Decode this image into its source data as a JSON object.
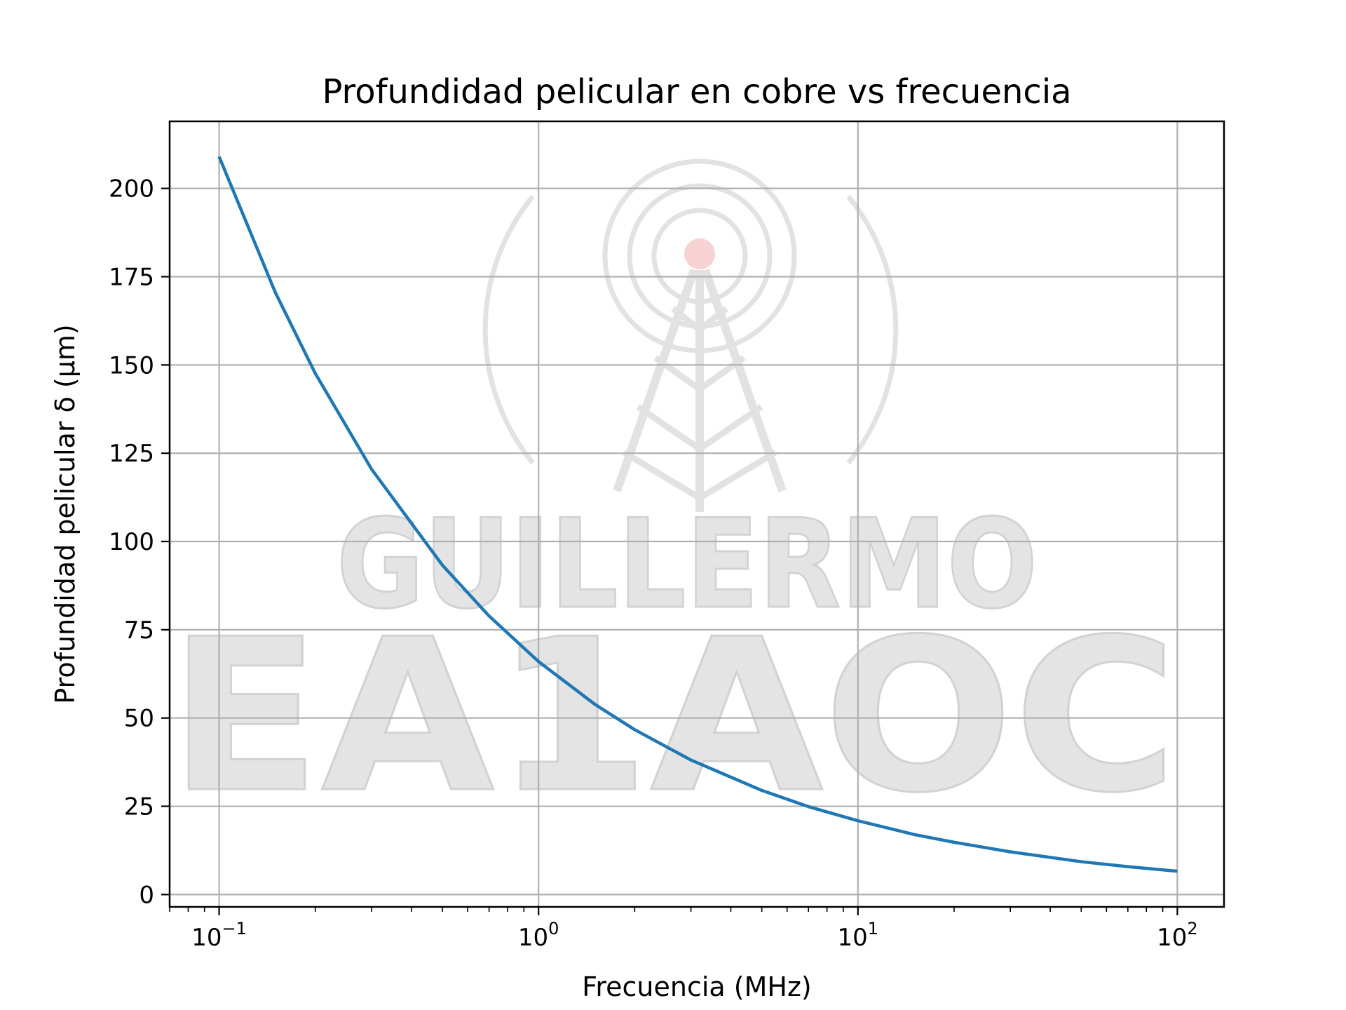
{
  "chart_data": {
    "type": "line",
    "title": "Profundidad pelicular en cobre vs frecuencia",
    "xlabel": "Frecuencia (MHz)",
    "ylabel": "Profundidad pelicular δ (μm)",
    "xscale": "log",
    "xlim": [
      0.07,
      140
    ],
    "ylim": [
      -3.5,
      219
    ],
    "grid": true,
    "x_ticks": [
      {
        "value": 0.1,
        "base": "10",
        "exp": "−1"
      },
      {
        "value": 1,
        "base": "10",
        "exp": "0"
      },
      {
        "value": 10,
        "base": "10",
        "exp": "1"
      },
      {
        "value": 100,
        "base": "10",
        "exp": "2"
      }
    ],
    "y_ticks": [
      0,
      25,
      50,
      75,
      100,
      125,
      150,
      175,
      200
    ],
    "series": [
      {
        "color": "#1f77b4",
        "x": [
          0.1,
          0.15,
          0.2,
          0.3,
          0.5,
          0.7,
          1,
          1.5,
          2,
          3,
          5,
          7,
          10,
          15,
          20,
          30,
          50,
          70,
          100
        ],
        "y": [
          209,
          170.5,
          147.6,
          120.5,
          93.3,
          78.9,
          66.0,
          53.9,
          46.7,
          38.1,
          29.5,
          24.9,
          20.9,
          17.0,
          14.8,
          12.1,
          9.3,
          7.9,
          6.6
        ]
      }
    ]
  },
  "watermark": {
    "name_text": "GUILLERMO",
    "callsign_text": "EA1AOC",
    "icon": "radio-tower-icon",
    "accent_color": "#f3c0c0"
  }
}
